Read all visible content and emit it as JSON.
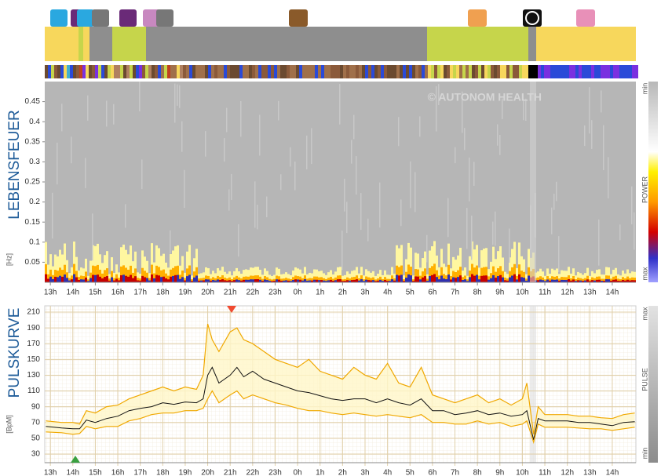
{
  "chart_data": [
    {
      "type": "spectrogram",
      "title": "LEBENSFEUER",
      "y_label": "[Hz]",
      "watermark": "© AUTONOM HEALTH",
      "xlim": [
        12.75,
        39.05
      ],
      "xticks": [
        {
          "value": 13,
          "label": "13h"
        },
        {
          "value": 14,
          "label": "14h"
        },
        {
          "value": 15,
          "label": "15h"
        },
        {
          "value": 16,
          "label": "16h"
        },
        {
          "value": 17,
          "label": "17h"
        },
        {
          "value": 18,
          "label": "18h"
        },
        {
          "value": 19,
          "label": "19h"
        },
        {
          "value": 20,
          "label": "20h"
        },
        {
          "value": 21,
          "label": "21h"
        },
        {
          "value": 22,
          "label": "22h"
        },
        {
          "value": 23,
          "label": "23h"
        },
        {
          "value": 24,
          "label": "0h"
        },
        {
          "value": 25,
          "label": "1h"
        },
        {
          "value": 26,
          "label": "2h"
        },
        {
          "value": 27,
          "label": "3h"
        },
        {
          "value": 28,
          "label": "4h"
        },
        {
          "value": 29,
          "label": "5h"
        },
        {
          "value": 30,
          "label": "6h"
        },
        {
          "value": 31,
          "label": "7h"
        },
        {
          "value": 32,
          "label": "8h"
        },
        {
          "value": 33,
          "label": "9h"
        },
        {
          "value": 34,
          "label": "10h"
        },
        {
          "value": 35,
          "label": "11h"
        },
        {
          "value": 36,
          "label": "12h"
        },
        {
          "value": 37,
          "label": "13h"
        },
        {
          "value": 38,
          "label": "14h"
        }
      ],
      "ylim": [
        0,
        0.5
      ],
      "yticks": [
        0.05,
        0.1,
        0.15,
        0.2,
        0.25,
        0.3,
        0.35,
        0.4,
        0.45
      ],
      "colorbar": {
        "label": "POWER",
        "top_label": "min",
        "bottom_label": "max"
      }
    },
    {
      "type": "line",
      "title": "PULSKURVE",
      "y_label": "[BpM]",
      "xlim": [
        12.75,
        39.05
      ],
      "xticks": [
        {
          "value": 13,
          "label": "13h"
        },
        {
          "value": 14,
          "label": "14h"
        },
        {
          "value": 15,
          "label": "15h"
        },
        {
          "value": 16,
          "label": "16h"
        },
        {
          "value": 17,
          "label": "17h"
        },
        {
          "value": 18,
          "label": "18h"
        },
        {
          "value": 19,
          "label": "19h"
        },
        {
          "value": 20,
          "label": "20h"
        },
        {
          "value": 21,
          "label": "21h"
        },
        {
          "value": 22,
          "label": "22h"
        },
        {
          "value": 23,
          "label": "23h"
        },
        {
          "value": 24,
          "label": "0h"
        },
        {
          "value": 25,
          "label": "1h"
        },
        {
          "value": 26,
          "label": "2h"
        },
        {
          "value": 27,
          "label": "3h"
        },
        {
          "value": 28,
          "label": "4h"
        },
        {
          "value": 29,
          "label": "5h"
        },
        {
          "value": 30,
          "label": "6h"
        },
        {
          "value": 31,
          "label": "7h"
        },
        {
          "value": 32,
          "label": "8h"
        },
        {
          "value": 33,
          "label": "9h"
        },
        {
          "value": 34,
          "label": "10h"
        },
        {
          "value": 35,
          "label": "11h"
        },
        {
          "value": 36,
          "label": "12h"
        },
        {
          "value": 37,
          "label": "13h"
        },
        {
          "value": 38,
          "label": "14h"
        }
      ],
      "ylim": [
        19,
        218
      ],
      "yticks": [
        30,
        50,
        70,
        90,
        110,
        130,
        150,
        170,
        190,
        210
      ],
      "colorbar": {
        "label": "PULSE",
        "top_label": "max",
        "bottom_label": "min"
      },
      "x": [
        12.8,
        13.5,
        14,
        14.3,
        14.6,
        15,
        15.5,
        16,
        16.5,
        17,
        17.5,
        18,
        18.5,
        19,
        19.5,
        19.8,
        20,
        20.2,
        20.5,
        21,
        21.3,
        21.6,
        22,
        22.5,
        23,
        23.5,
        24,
        24.5,
        25,
        25.5,
        26,
        26.5,
        27,
        27.5,
        28,
        28.5,
        29,
        29.5,
        30,
        30.5,
        31,
        31.5,
        32,
        32.5,
        33,
        33.5,
        34,
        34.2,
        34.5,
        34.7,
        35,
        36,
        36.5,
        37,
        37.5,
        38,
        38.5,
        39
      ],
      "series": [
        {
          "color": "#f0a800",
          "values": [
            72,
            70,
            70,
            68,
            85,
            82,
            90,
            92,
            100,
            105,
            110,
            115,
            110,
            115,
            112,
            130,
            195,
            175,
            160,
            185,
            190,
            175,
            170,
            160,
            150,
            145,
            140,
            150,
            135,
            130,
            125,
            140,
            130,
            125,
            145,
            120,
            115,
            140,
            105,
            100,
            95,
            100,
            105,
            95,
            100,
            92,
            100,
            120,
            55,
            90,
            80,
            80,
            78,
            78,
            76,
            75,
            80,
            82
          ]
        },
        {
          "color": "#111111",
          "values": [
            65,
            63,
            62,
            62,
            73,
            70,
            75,
            78,
            85,
            88,
            90,
            95,
            93,
            96,
            95,
            100,
            130,
            140,
            120,
            130,
            140,
            128,
            135,
            125,
            120,
            115,
            110,
            108,
            104,
            100,
            98,
            100,
            100,
            95,
            100,
            95,
            92,
            100,
            85,
            85,
            80,
            82,
            85,
            80,
            82,
            78,
            80,
            85,
            48,
            75,
            72,
            72,
            70,
            70,
            68,
            66,
            70,
            71
          ]
        },
        {
          "color": "#f0a800",
          "values": [
            58,
            57,
            55,
            56,
            65,
            62,
            65,
            65,
            72,
            75,
            80,
            82,
            82,
            85,
            85,
            88,
            100,
            110,
            95,
            105,
            110,
            100,
            105,
            100,
            95,
            92,
            88,
            85,
            85,
            82,
            80,
            82,
            80,
            78,
            80,
            78,
            76,
            80,
            70,
            70,
            68,
            68,
            72,
            68,
            70,
            65,
            68,
            72,
            45,
            68,
            64,
            64,
            63,
            62,
            62,
            60,
            62,
            64
          ]
        }
      ]
    }
  ]
}
